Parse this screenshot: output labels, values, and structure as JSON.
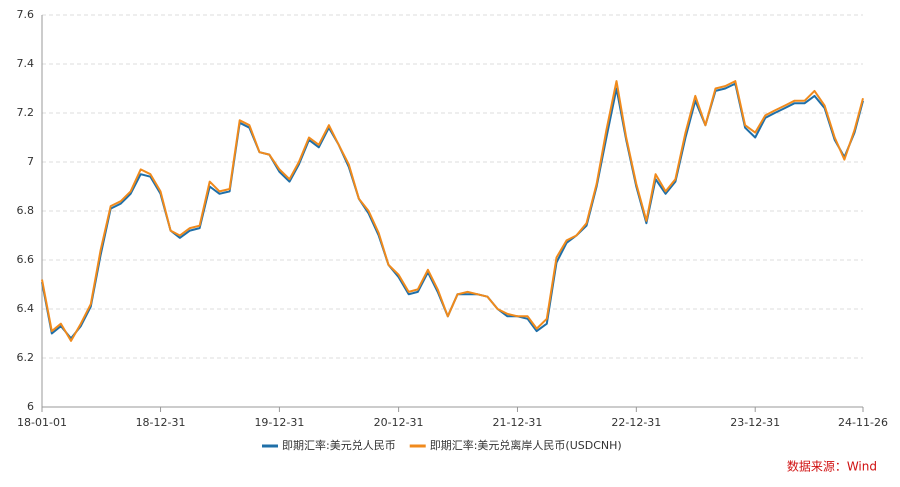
{
  "chart_data": {
    "type": "line",
    "x": [
      "18-01-01",
      "18-01-31",
      "18-02-28",
      "18-03-31",
      "18-04-30",
      "18-05-31",
      "18-06-30",
      "18-07-31",
      "18-08-31",
      "18-09-30",
      "18-10-31",
      "18-11-30",
      "18-12-31",
      "19-01-31",
      "19-02-28",
      "19-03-31",
      "19-04-30",
      "19-05-31",
      "19-06-30",
      "19-07-31",
      "19-08-31",
      "19-09-30",
      "19-10-31",
      "19-11-30",
      "19-12-31",
      "20-01-31",
      "20-02-29",
      "20-03-31",
      "20-04-30",
      "20-05-31",
      "20-06-30",
      "20-07-31",
      "20-08-31",
      "20-09-30",
      "20-10-31",
      "20-11-30",
      "20-12-31",
      "21-01-31",
      "21-02-28",
      "21-03-31",
      "21-04-30",
      "21-05-31",
      "21-06-30",
      "21-07-31",
      "21-08-31",
      "21-09-30",
      "21-10-31",
      "21-11-30",
      "21-12-31",
      "22-01-31",
      "22-02-28",
      "22-03-31",
      "22-04-30",
      "22-05-31",
      "22-06-30",
      "22-07-31",
      "22-08-31",
      "22-09-30",
      "22-10-31",
      "22-11-30",
      "22-12-31",
      "23-01-31",
      "23-02-28",
      "23-03-31",
      "23-04-30",
      "23-05-31",
      "23-06-30",
      "23-07-31",
      "23-08-31",
      "23-09-30",
      "23-10-31",
      "23-11-30",
      "23-12-31",
      "24-01-31",
      "24-02-29",
      "24-03-31",
      "24-04-30",
      "24-05-31",
      "24-06-30",
      "24-07-31",
      "24-08-31",
      "24-09-30",
      "24-10-31",
      "24-11-26"
    ],
    "series": [
      {
        "name": "即期汇率:美元兑人民币",
        "color": "#1f6fa8",
        "values": [
          6.51,
          6.3,
          6.33,
          6.28,
          6.33,
          6.41,
          6.62,
          6.81,
          6.83,
          6.87,
          6.95,
          6.94,
          6.87,
          6.72,
          6.69,
          6.72,
          6.73,
          6.9,
          6.87,
          6.88,
          7.16,
          7.14,
          7.04,
          7.03,
          6.96,
          6.92,
          6.99,
          7.09,
          7.06,
          7.14,
          7.07,
          6.98,
          6.85,
          6.79,
          6.7,
          6.58,
          6.53,
          6.46,
          6.47,
          6.55,
          6.47,
          6.37,
          6.46,
          6.46,
          6.46,
          6.45,
          6.4,
          6.37,
          6.37,
          6.36,
          6.31,
          6.34,
          6.59,
          6.67,
          6.7,
          6.74,
          6.9,
          7.1,
          7.3,
          7.09,
          6.9,
          6.75,
          6.93,
          6.87,
          6.92,
          7.1,
          7.25,
          7.15,
          7.29,
          7.3,
          7.32,
          7.14,
          7.1,
          7.18,
          7.2,
          7.22,
          7.24,
          7.24,
          7.27,
          7.22,
          7.09,
          7.02,
          7.12,
          7.25
        ]
      },
      {
        "name": "即期汇率:美元兑离岸人民币(USDCNH)",
        "color": "#f08a1c",
        "values": [
          6.52,
          6.31,
          6.34,
          6.27,
          6.34,
          6.42,
          6.64,
          6.82,
          6.84,
          6.88,
          6.97,
          6.95,
          6.88,
          6.72,
          6.7,
          6.73,
          6.74,
          6.92,
          6.88,
          6.89,
          7.17,
          7.15,
          7.04,
          7.03,
          6.97,
          6.93,
          7.0,
          7.1,
          7.07,
          7.15,
          7.07,
          6.99,
          6.85,
          6.8,
          6.71,
          6.58,
          6.54,
          6.47,
          6.48,
          6.56,
          6.48,
          6.37,
          6.46,
          6.47,
          6.46,
          6.45,
          6.4,
          6.38,
          6.37,
          6.37,
          6.32,
          6.36,
          6.61,
          6.68,
          6.7,
          6.75,
          6.91,
          7.13,
          7.33,
          7.1,
          6.91,
          6.76,
          6.95,
          6.88,
          6.93,
          7.12,
          7.27,
          7.15,
          7.3,
          7.31,
          7.33,
          7.15,
          7.12,
          7.19,
          7.21,
          7.23,
          7.25,
          7.25,
          7.29,
          7.23,
          7.1,
          7.01,
          7.13,
          7.26
        ]
      }
    ],
    "xlim": [
      "18-01-01",
      "24-11-26"
    ],
    "xticks": [
      "18-01-01",
      "18-12-31",
      "19-12-31",
      "20-12-31",
      "21-12-31",
      "22-12-31",
      "23-12-31",
      "24-11-26"
    ],
    "ylim": [
      6,
      7.6
    ],
    "yticks": [
      6,
      6.2,
      6.4,
      6.6,
      6.8,
      7,
      7.2,
      7.4,
      7.6
    ],
    "grid": true,
    "source": "数据来源：Wind"
  }
}
